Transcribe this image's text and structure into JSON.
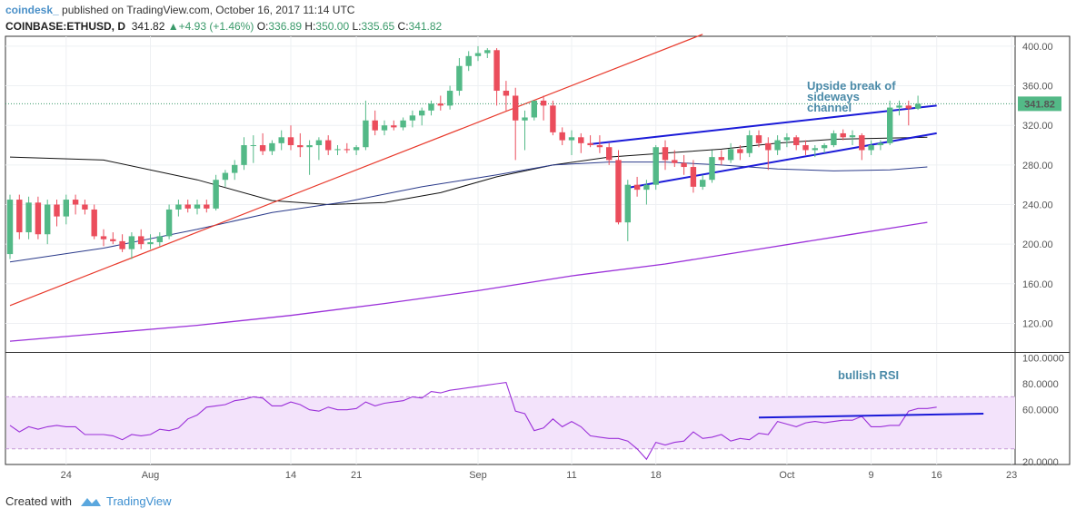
{
  "header": {
    "brand": "coindesk_",
    "published": "published on TradingView.com, October 16, 2017 11:14 UTC",
    "symbol": "COINBASE:ETHUSD, D",
    "last": "341.82",
    "change": "+4.93 (+1.46%)",
    "open_label": "O:",
    "open": "336.89",
    "high_label": "H:",
    "high": "350.00",
    "low_label": "L:",
    "low": "335.65",
    "close_label": "C:",
    "close": "341.82"
  },
  "footer": {
    "created_with": "Created with",
    "brand": "TradingView"
  },
  "colors": {
    "up": "#53b987",
    "down": "#eb4d5c",
    "channel": "#1a1ad8",
    "trend": "#e8392b",
    "ma50": "#111111",
    "ma100": "#2a3a8a",
    "ma200": "#9b30d9",
    "rsi": "#9b30d9",
    "rsi_band": "#f3e3fb"
  },
  "chart_data": [
    {
      "type": "candlestick",
      "title": "",
      "x_ticks": [
        "24",
        "Aug",
        "14",
        "21",
        "Sep",
        "11",
        "18",
        "Oct",
        "9",
        "16",
        "23"
      ],
      "y_ticks": [
        "400.00",
        "360.00",
        "320.00",
        "280.00",
        "240.00",
        "200.00",
        "160.00",
        "120.00"
      ],
      "ylim": [
        92,
        410
      ],
      "price_label": "341.82",
      "annotation": "Upside break of sideways channel",
      "last_price_line": 341.82,
      "candles": [
        {
          "o": 190,
          "h": 250,
          "l": 185,
          "c": 245
        },
        {
          "o": 245,
          "h": 250,
          "l": 205,
          "c": 212
        },
        {
          "o": 212,
          "h": 248,
          "l": 205,
          "c": 242
        },
        {
          "o": 242,
          "h": 248,
          "l": 205,
          "c": 210
        },
        {
          "o": 210,
          "h": 245,
          "l": 200,
          "c": 240
        },
        {
          "o": 240,
          "h": 245,
          "l": 218,
          "c": 228
        },
        {
          "o": 228,
          "h": 250,
          "l": 220,
          "c": 245
        },
        {
          "o": 245,
          "h": 250,
          "l": 230,
          "c": 240
        },
        {
          "o": 240,
          "h": 245,
          "l": 230,
          "c": 235
        },
        {
          "o": 235,
          "h": 240,
          "l": 205,
          "c": 208
        },
        {
          "o": 208,
          "h": 215,
          "l": 198,
          "c": 205
        },
        {
          "o": 205,
          "h": 212,
          "l": 200,
          "c": 203
        },
        {
          "o": 203,
          "h": 210,
          "l": 192,
          "c": 195
        },
        {
          "o": 195,
          "h": 212,
          "l": 185,
          "c": 208
        },
        {
          "o": 208,
          "h": 215,
          "l": 195,
          "c": 200
        },
        {
          "o": 200,
          "h": 210,
          "l": 195,
          "c": 202
        },
        {
          "o": 202,
          "h": 212,
          "l": 198,
          "c": 208
        },
        {
          "o": 208,
          "h": 240,
          "l": 205,
          "c": 235
        },
        {
          "o": 235,
          "h": 245,
          "l": 228,
          "c": 240
        },
        {
          "o": 240,
          "h": 245,
          "l": 232,
          "c": 236
        },
        {
          "o": 236,
          "h": 245,
          "l": 230,
          "c": 240
        },
        {
          "o": 240,
          "h": 245,
          "l": 232,
          "c": 236
        },
        {
          "o": 236,
          "h": 270,
          "l": 234,
          "c": 265
        },
        {
          "o": 265,
          "h": 275,
          "l": 258,
          "c": 272
        },
        {
          "o": 272,
          "h": 285,
          "l": 265,
          "c": 280
        },
        {
          "o": 280,
          "h": 308,
          "l": 275,
          "c": 300
        },
        {
          "o": 300,
          "h": 310,
          "l": 282,
          "c": 300
        },
        {
          "o": 300,
          "h": 312,
          "l": 290,
          "c": 294
        },
        {
          "o": 294,
          "h": 305,
          "l": 290,
          "c": 302
        },
        {
          "o": 302,
          "h": 315,
          "l": 295,
          "c": 308
        },
        {
          "o": 308,
          "h": 320,
          "l": 295,
          "c": 300
        },
        {
          "o": 300,
          "h": 312,
          "l": 288,
          "c": 298
        },
        {
          "o": 298,
          "h": 305,
          "l": 270,
          "c": 300
        },
        {
          "o": 300,
          "h": 308,
          "l": 285,
          "c": 305
        },
        {
          "o": 305,
          "h": 310,
          "l": 290,
          "c": 295
        },
        {
          "o": 295,
          "h": 300,
          "l": 290,
          "c": 296
        },
        {
          "o": 296,
          "h": 302,
          "l": 292,
          "c": 295
        },
        {
          "o": 295,
          "h": 300,
          "l": 290,
          "c": 298
        },
        {
          "o": 298,
          "h": 345,
          "l": 295,
          "c": 325
        },
        {
          "o": 325,
          "h": 335,
          "l": 310,
          "c": 315
        },
        {
          "o": 315,
          "h": 325,
          "l": 310,
          "c": 320
        },
        {
          "o": 320,
          "h": 325,
          "l": 315,
          "c": 318
        },
        {
          "o": 318,
          "h": 328,
          "l": 315,
          "c": 325
        },
        {
          "o": 325,
          "h": 335,
          "l": 318,
          "c": 330
        },
        {
          "o": 330,
          "h": 338,
          "l": 320,
          "c": 335
        },
        {
          "o": 335,
          "h": 345,
          "l": 330,
          "c": 342
        },
        {
          "o": 342,
          "h": 350,
          "l": 335,
          "c": 340
        },
        {
          "o": 340,
          "h": 360,
          "l": 336,
          "c": 355
        },
        {
          "o": 355,
          "h": 388,
          "l": 350,
          "c": 380
        },
        {
          "o": 380,
          "h": 395,
          "l": 375,
          "c": 390
        },
        {
          "o": 390,
          "h": 400,
          "l": 385,
          "c": 393
        },
        {
          "o": 393,
          "h": 398,
          "l": 388,
          "c": 396
        },
        {
          "o": 396,
          "h": 398,
          "l": 340,
          "c": 355
        },
        {
          "o": 355,
          "h": 365,
          "l": 335,
          "c": 350
        },
        {
          "o": 350,
          "h": 358,
          "l": 285,
          "c": 325
        },
        {
          "o": 325,
          "h": 335,
          "l": 295,
          "c": 328
        },
        {
          "o": 328,
          "h": 345,
          "l": 325,
          "c": 345
        },
        {
          "o": 345,
          "h": 350,
          "l": 325,
          "c": 340
        },
        {
          "o": 340,
          "h": 345,
          "l": 310,
          "c": 313
        },
        {
          "o": 313,
          "h": 318,
          "l": 300,
          "c": 305
        },
        {
          "o": 305,
          "h": 315,
          "l": 290,
          "c": 308
        },
        {
          "o": 308,
          "h": 312,
          "l": 292,
          "c": 302
        },
        {
          "o": 302,
          "h": 310,
          "l": 298,
          "c": 300
        },
        {
          "o": 300,
          "h": 310,
          "l": 292,
          "c": 298
        },
        {
          "o": 298,
          "h": 302,
          "l": 280,
          "c": 285
        },
        {
          "o": 285,
          "h": 295,
          "l": 220,
          "c": 222
        },
        {
          "o": 222,
          "h": 265,
          "l": 203,
          "c": 260
        },
        {
          "o": 260,
          "h": 268,
          "l": 248,
          "c": 255
        },
        {
          "o": 255,
          "h": 265,
          "l": 240,
          "c": 260
        },
        {
          "o": 260,
          "h": 300,
          "l": 255,
          "c": 298
        },
        {
          "o": 298,
          "h": 305,
          "l": 275,
          "c": 285
        },
        {
          "o": 285,
          "h": 295,
          "l": 278,
          "c": 282
        },
        {
          "o": 282,
          "h": 290,
          "l": 270,
          "c": 278
        },
        {
          "o": 278,
          "h": 285,
          "l": 252,
          "c": 258
        },
        {
          "o": 258,
          "h": 270,
          "l": 255,
          "c": 265
        },
        {
          "o": 265,
          "h": 295,
          "l": 262,
          "c": 288
        },
        {
          "o": 288,
          "h": 295,
          "l": 280,
          "c": 285
        },
        {
          "o": 285,
          "h": 302,
          "l": 282,
          "c": 296
        },
        {
          "o": 296,
          "h": 300,
          "l": 285,
          "c": 292
        },
        {
          "o": 292,
          "h": 315,
          "l": 288,
          "c": 310
        },
        {
          "o": 310,
          "h": 315,
          "l": 298,
          "c": 302
        },
        {
          "o": 302,
          "h": 308,
          "l": 275,
          "c": 295
        },
        {
          "o": 295,
          "h": 310,
          "l": 290,
          "c": 305
        },
        {
          "o": 305,
          "h": 312,
          "l": 298,
          "c": 308
        },
        {
          "o": 308,
          "h": 310,
          "l": 295,
          "c": 300
        },
        {
          "o": 300,
          "h": 305,
          "l": 290,
          "c": 295
        },
        {
          "o": 295,
          "h": 300,
          "l": 288,
          "c": 297
        },
        {
          "o": 297,
          "h": 302,
          "l": 292,
          "c": 300
        },
        {
          "o": 300,
          "h": 315,
          "l": 298,
          "c": 312
        },
        {
          "o": 312,
          "h": 316,
          "l": 305,
          "c": 308
        },
        {
          "o": 308,
          "h": 315,
          "l": 300,
          "c": 310
        },
        {
          "o": 310,
          "h": 312,
          "l": 285,
          "c": 295
        },
        {
          "o": 295,
          "h": 305,
          "l": 290,
          "c": 300
        },
        {
          "o": 300,
          "h": 305,
          "l": 295,
          "c": 302
        },
        {
          "o": 302,
          "h": 345,
          "l": 300,
          "c": 338
        },
        {
          "o": 338,
          "h": 345,
          "l": 330,
          "c": 340
        },
        {
          "o": 340,
          "h": 345,
          "l": 320,
          "c": 337
        },
        {
          "o": 336.89,
          "h": 350,
          "l": 335.65,
          "c": 341.82
        }
      ],
      "series": [
        {
          "name": "",
          "kind": "ma50",
          "values": [
            [
              0,
              288
            ],
            [
              10,
              285
            ],
            [
              20,
              265
            ],
            [
              28,
              244
            ],
            [
              34,
              240
            ],
            [
              40,
              242
            ],
            [
              46,
              252
            ],
            [
              52,
              268
            ],
            [
              58,
              280
            ],
            [
              64,
              288
            ],
            [
              70,
              292
            ],
            [
              76,
              296
            ],
            [
              82,
              302
            ],
            [
              88,
              306
            ],
            [
              98,
              308
            ]
          ]
        },
        {
          "name": "",
          "kind": "ma100",
          "values": [
            [
              0,
              182
            ],
            [
              10,
              196
            ],
            [
              20,
              215
            ],
            [
              28,
              232
            ],
            [
              36,
              243
            ],
            [
              44,
              258
            ],
            [
              52,
              270
            ],
            [
              58,
              280
            ],
            [
              64,
              283
            ],
            [
              70,
              283
            ],
            [
              76,
              280
            ],
            [
              82,
              276
            ],
            [
              88,
              274
            ],
            [
              94,
              275
            ],
            [
              98,
              278
            ]
          ]
        },
        {
          "name": "",
          "kind": "ma200",
          "values": [
            [
              0,
              102
            ],
            [
              10,
              110
            ],
            [
              20,
              118
            ],
            [
              30,
              128
            ],
            [
              40,
              140
            ],
            [
              50,
              153
            ],
            [
              60,
              168
            ],
            [
              70,
              180
            ],
            [
              80,
              195
            ],
            [
              90,
              210
            ],
            [
              98,
              222
            ]
          ]
        },
        {
          "name": "",
          "kind": "trendline",
          "values": [
            [
              0,
              138
            ],
            [
              74,
              412
            ]
          ]
        },
        {
          "name": "",
          "kind": "channel-upper",
          "values": [
            [
              62,
              301
            ],
            [
              99,
              340
            ]
          ]
        },
        {
          "name": "",
          "kind": "channel-lower",
          "values": [
            [
              66,
              257
            ],
            [
              99,
              312
            ]
          ]
        }
      ]
    },
    {
      "type": "line",
      "title": "",
      "annotation": "bullish RSI",
      "y_ticks": [
        "100.0000",
        "80.0000",
        "60.0000",
        "20.0000"
      ],
      "ylim": [
        18,
        103
      ],
      "band": [
        30,
        70
      ],
      "series": [
        {
          "name": "",
          "values": [
            48,
            43,
            47,
            45,
            47,
            48,
            47,
            47,
            41,
            41,
            41,
            40,
            37,
            41,
            40,
            41,
            45,
            44,
            46,
            53,
            56,
            62,
            63,
            64,
            67,
            68,
            70,
            69,
            63,
            63,
            66,
            64,
            60,
            59,
            62,
            60,
            60,
            61,
            66,
            63,
            65,
            66,
            67,
            70,
            69,
            74,
            73,
            75,
            76,
            77,
            78,
            79,
            80,
            81,
            59,
            57,
            44,
            46,
            53,
            47,
            51,
            47,
            40,
            39,
            38,
            38,
            36,
            30,
            22,
            35,
            33,
            35,
            36,
            43,
            38,
            39,
            41,
            36,
            38,
            37,
            42,
            41,
            51,
            49,
            47,
            50,
            51,
            50,
            51,
            52,
            52,
            55,
            47,
            47,
            48,
            48,
            59,
            61,
            61,
            62
          ]
        },
        {
          "name": "",
          "kind": "rsi-trendline",
          "values": [
            [
              80,
              54
            ],
            [
              104,
              57
            ]
          ]
        }
      ]
    }
  ]
}
